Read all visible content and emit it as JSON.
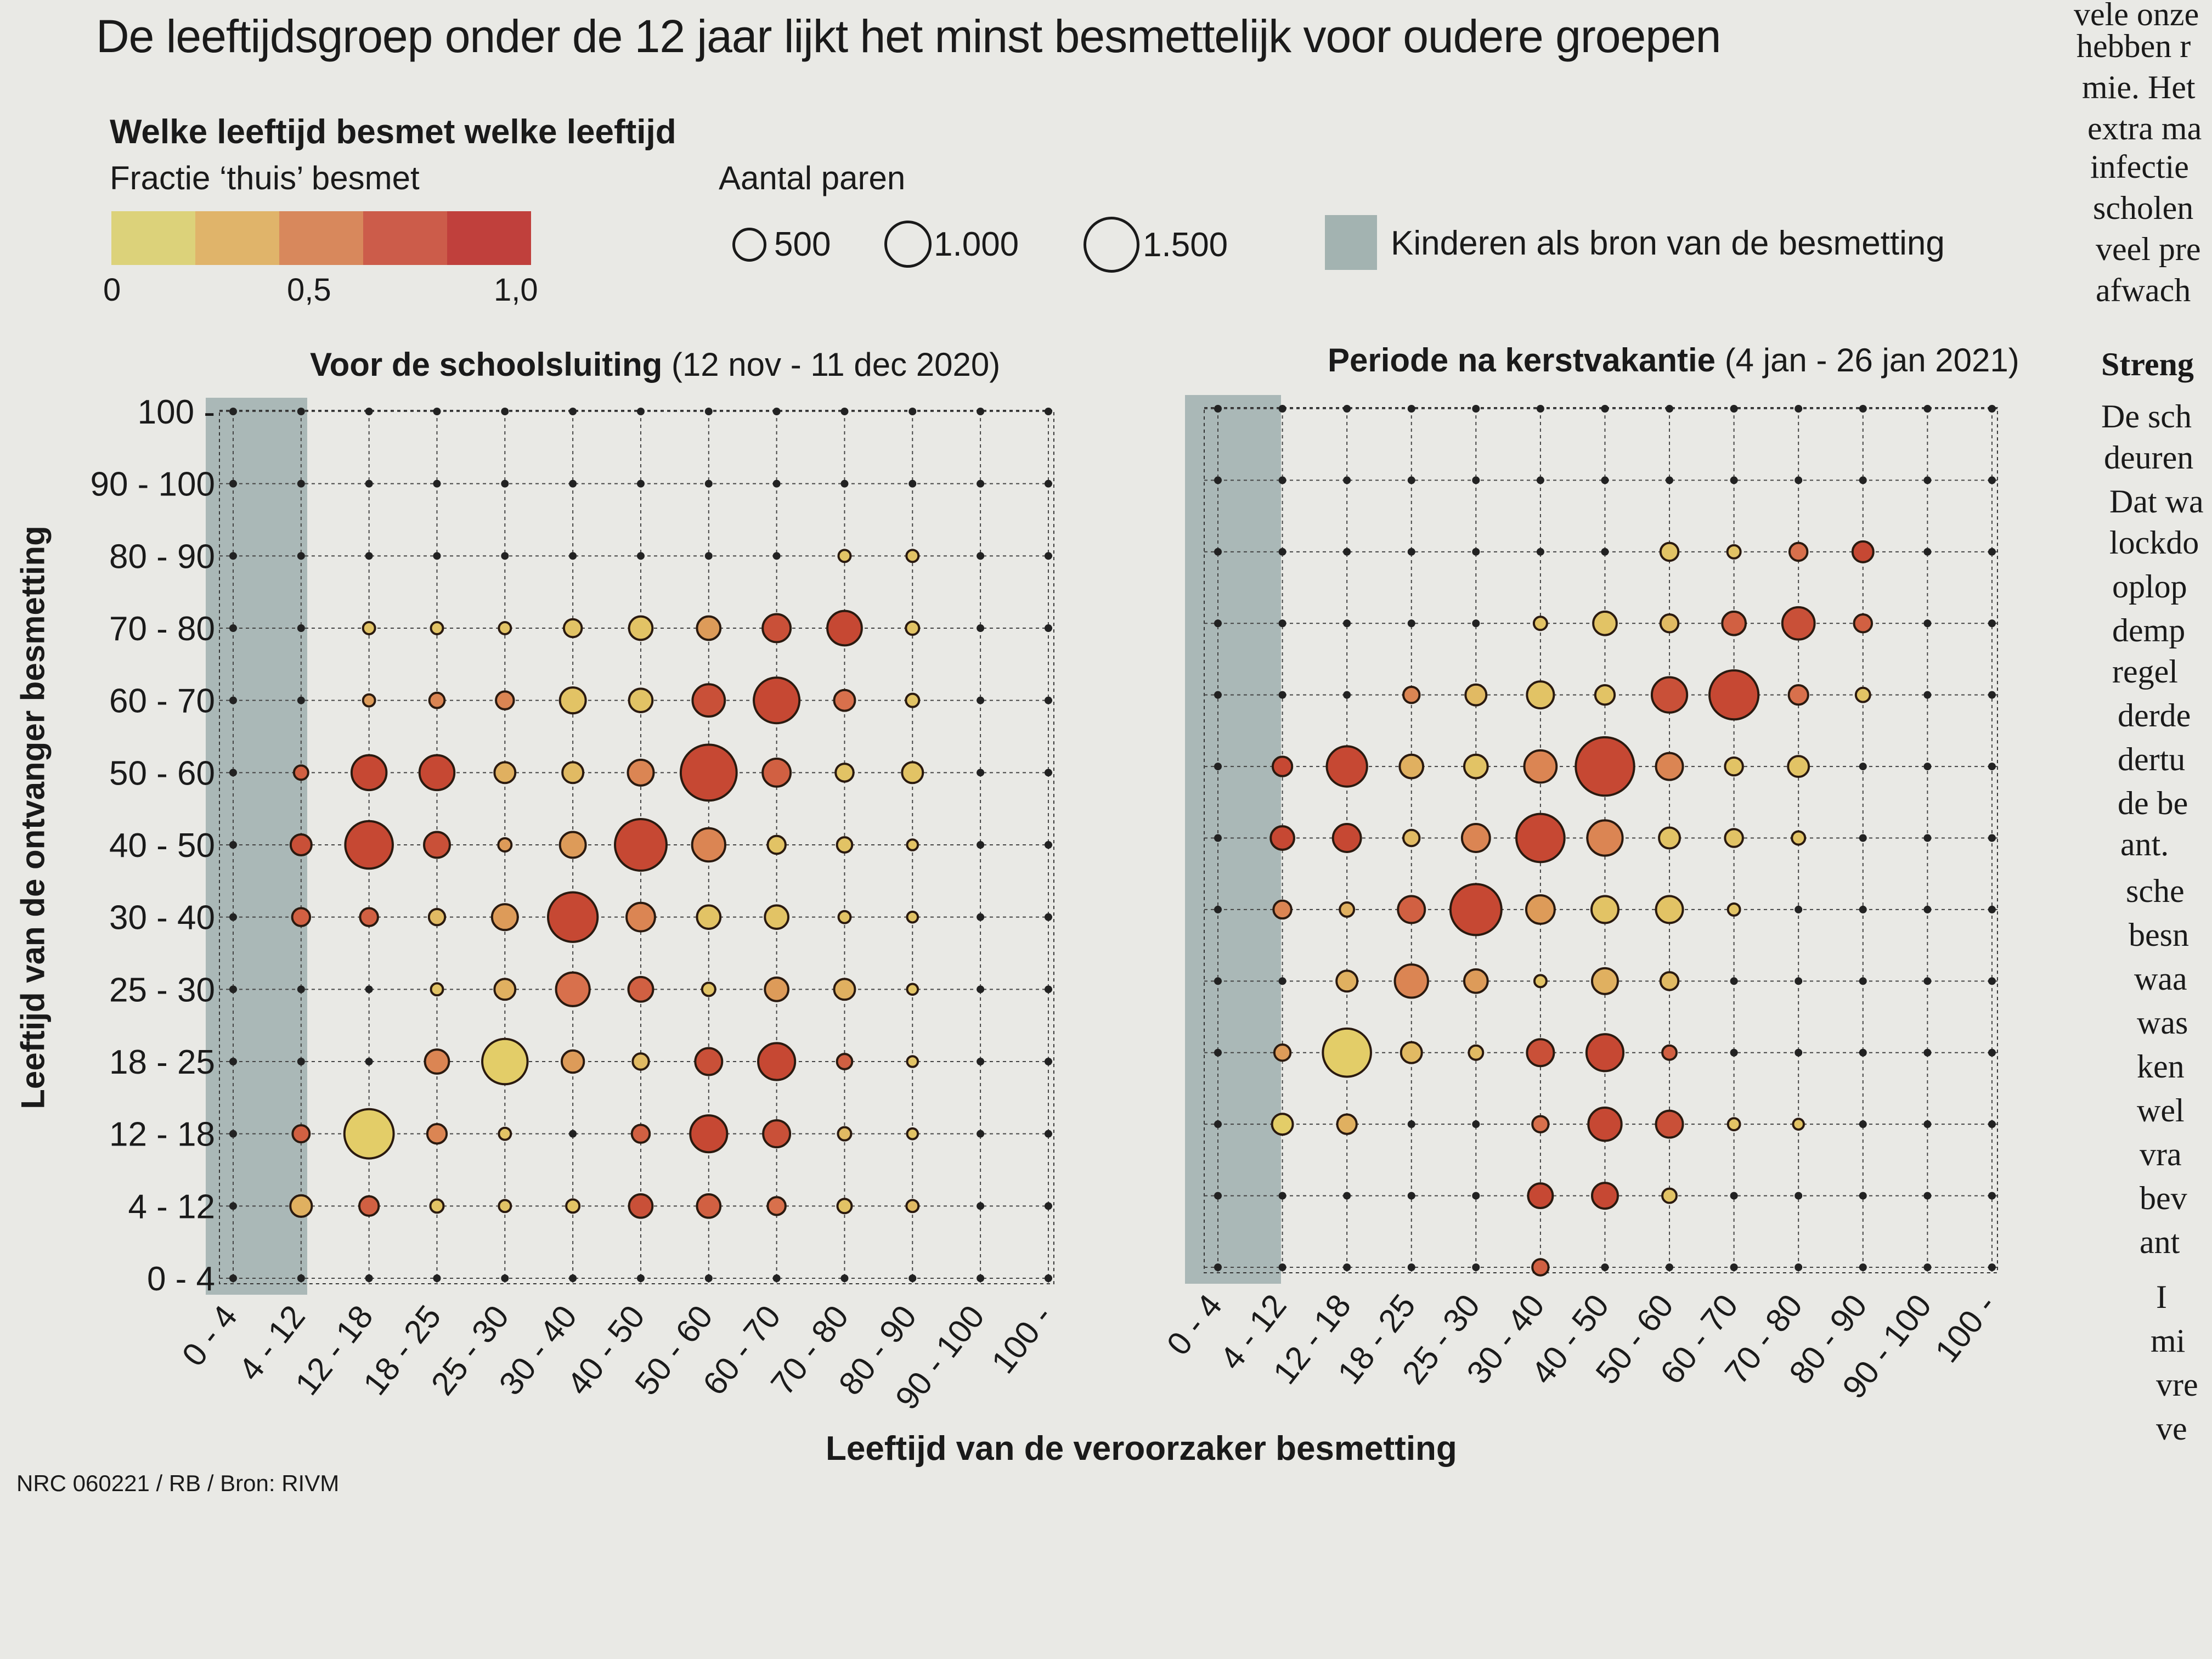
{
  "headline": "De leeftijdsgroep onder de 12 jaar lijkt het minst besmettelijk voor oudere groepen",
  "legend": {
    "title": "Welke leeftijd besmet welke leeftijd",
    "color_label": "Fractie ‘thuis’ besmet",
    "color_ticks": [
      "0",
      "0,5",
      "1,0"
    ],
    "color_scale": [
      "#dcd27a",
      "#e0b46a",
      "#d8885c",
      "#cc5c4a",
      "#c0403c"
    ],
    "size_label": "Aantal paren",
    "size_items": [
      {
        "label": "500",
        "value": 500
      },
      {
        "label": "1.000",
        "value": 1000
      },
      {
        "label": "1.500",
        "value": 1500
      }
    ],
    "children_label": "Kinderen als bron van de besmetting",
    "children_color": "#a3b3b1"
  },
  "axis": {
    "ylabel": "Leeftijd van de ontvanger besmetting",
    "xlabel": "Leeftijd van de veroorzaker besmetting",
    "categories": [
      "0 - 4",
      "4 - 12",
      "12 - 18",
      "18 - 25",
      "25 - 30",
      "30 - 40",
      "40 - 50",
      "50 - 60",
      "60 - 70",
      "70 - 80",
      "80 - 90",
      "90 - 100",
      "100 -"
    ],
    "x_tick_labels": [
      "0 - 4",
      "4 - 12",
      "12 - 18",
      "18 - 25",
      "25 - 30",
      "30 - 40",
      "40 - 50",
      "50 - 60",
      "60 - 70",
      "70 - 80",
      "80 - 90",
      "90 - 100",
      "100 -"
    ]
  },
  "source": "NRC 060221 / RB / Bron: RIVM",
  "chart_data": [
    {
      "type": "scatter",
      "title_bold": "Voor de schoolsluiting",
      "title_rest": " (12 nov - 11 dec 2020)",
      "note": "bubble matrix: x = index of source age group, y = index of recipient age group, size = number of pairs, frac = fraction infected at home",
      "points": [
        {
          "x": 1,
          "y": 1,
          "size": 160,
          "frac": 0.4
        },
        {
          "x": 2,
          "y": 1,
          "size": 130,
          "frac": 0.8
        },
        {
          "x": 3,
          "y": 1,
          "size": 60,
          "frac": 0.2
        },
        {
          "x": 4,
          "y": 1,
          "size": 50,
          "frac": 0.2
        },
        {
          "x": 5,
          "y": 1,
          "size": 60,
          "frac": 0.2
        },
        {
          "x": 6,
          "y": 1,
          "size": 190,
          "frac": 0.9
        },
        {
          "x": 7,
          "y": 1,
          "size": 190,
          "frac": 0.8
        },
        {
          "x": 8,
          "y": 1,
          "size": 110,
          "frac": 0.7
        },
        {
          "x": 9,
          "y": 1,
          "size": 70,
          "frac": 0.2
        },
        {
          "x": 10,
          "y": 1,
          "size": 50,
          "frac": 0.3
        },
        {
          "x": 1,
          "y": 2,
          "size": 100,
          "frac": 0.8
        },
        {
          "x": 2,
          "y": 2,
          "size": 840,
          "frac": 0.1
        },
        {
          "x": 3,
          "y": 2,
          "size": 130,
          "frac": 0.6
        },
        {
          "x": 4,
          "y": 2,
          "size": 50,
          "frac": 0.2
        },
        {
          "x": 6,
          "y": 2,
          "size": 110,
          "frac": 0.8
        },
        {
          "x": 7,
          "y": 2,
          "size": 470,
          "frac": 0.95
        },
        {
          "x": 8,
          "y": 2,
          "size": 250,
          "frac": 0.9
        },
        {
          "x": 9,
          "y": 2,
          "size": 60,
          "frac": 0.3
        },
        {
          "x": 10,
          "y": 2,
          "size": 40,
          "frac": 0.2
        },
        {
          "x": 3,
          "y": 3,
          "size": 200,
          "frac": 0.6
        },
        {
          "x": 4,
          "y": 3,
          "size": 710,
          "frac": 0.1
        },
        {
          "x": 5,
          "y": 3,
          "size": 170,
          "frac": 0.5
        },
        {
          "x": 6,
          "y": 3,
          "size": 90,
          "frac": 0.3
        },
        {
          "x": 7,
          "y": 3,
          "size": 250,
          "frac": 0.9
        },
        {
          "x": 8,
          "y": 3,
          "size": 470,
          "frac": 0.95
        },
        {
          "x": 9,
          "y": 3,
          "size": 80,
          "frac": 0.8
        },
        {
          "x": 10,
          "y": 3,
          "size": 40,
          "frac": 0.2
        },
        {
          "x": 3,
          "y": 4,
          "size": 50,
          "frac": 0.2
        },
        {
          "x": 4,
          "y": 4,
          "size": 150,
          "frac": 0.4
        },
        {
          "x": 5,
          "y": 4,
          "size": 390,
          "frac": 0.7
        },
        {
          "x": 6,
          "y": 4,
          "size": 210,
          "frac": 0.8
        },
        {
          "x": 7,
          "y": 4,
          "size": 60,
          "frac": 0.2
        },
        {
          "x": 8,
          "y": 4,
          "size": 190,
          "frac": 0.5
        },
        {
          "x": 9,
          "y": 4,
          "size": 150,
          "frac": 0.4
        },
        {
          "x": 10,
          "y": 4,
          "size": 40,
          "frac": 0.2
        },
        {
          "x": 1,
          "y": 5,
          "size": 110,
          "frac": 0.8
        },
        {
          "x": 2,
          "y": 5,
          "size": 110,
          "frac": 0.8
        },
        {
          "x": 3,
          "y": 5,
          "size": 90,
          "frac": 0.3
        },
        {
          "x": 4,
          "y": 5,
          "size": 230,
          "frac": 0.5
        },
        {
          "x": 5,
          "y": 5,
          "size": 850,
          "frac": 0.95
        },
        {
          "x": 6,
          "y": 5,
          "size": 280,
          "frac": 0.6
        },
        {
          "x": 7,
          "y": 5,
          "size": 190,
          "frac": 0.2
        },
        {
          "x": 8,
          "y": 5,
          "size": 190,
          "frac": 0.2
        },
        {
          "x": 9,
          "y": 5,
          "size": 50,
          "frac": 0.2
        },
        {
          "x": 10,
          "y": 5,
          "size": 40,
          "frac": 0.2
        },
        {
          "x": 1,
          "y": 6,
          "size": 150,
          "frac": 0.9
        },
        {
          "x": 2,
          "y": 6,
          "size": 780,
          "frac": 0.95
        },
        {
          "x": 3,
          "y": 6,
          "size": 230,
          "frac": 0.9
        },
        {
          "x": 4,
          "y": 6,
          "size": 60,
          "frac": 0.5
        },
        {
          "x": 5,
          "y": 6,
          "size": 230,
          "frac": 0.5
        },
        {
          "x": 6,
          "y": 6,
          "size": 920,
          "frac": 0.95
        },
        {
          "x": 7,
          "y": 6,
          "size": 380,
          "frac": 0.6
        },
        {
          "x": 8,
          "y": 6,
          "size": 110,
          "frac": 0.2
        },
        {
          "x": 9,
          "y": 6,
          "size": 80,
          "frac": 0.2
        },
        {
          "x": 10,
          "y": 6,
          "size": 40,
          "frac": 0.2
        },
        {
          "x": 1,
          "y": 7,
          "size": 70,
          "frac": 0.8
        },
        {
          "x": 2,
          "y": 7,
          "size": 420,
          "frac": 0.95
        },
        {
          "x": 3,
          "y": 7,
          "size": 420,
          "frac": 0.95
        },
        {
          "x": 4,
          "y": 7,
          "size": 150,
          "frac": 0.4
        },
        {
          "x": 5,
          "y": 7,
          "size": 150,
          "frac": 0.3
        },
        {
          "x": 6,
          "y": 7,
          "size": 230,
          "frac": 0.6
        },
        {
          "x": 7,
          "y": 7,
          "size": 1080,
          "frac": 0.95
        },
        {
          "x": 8,
          "y": 7,
          "size": 270,
          "frac": 0.8
        },
        {
          "x": 9,
          "y": 7,
          "size": 110,
          "frac": 0.2
        },
        {
          "x": 10,
          "y": 7,
          "size": 150,
          "frac": 0.2
        },
        {
          "x": 2,
          "y": 8,
          "size": 50,
          "frac": 0.5
        },
        {
          "x": 3,
          "y": 8,
          "size": 80,
          "frac": 0.6
        },
        {
          "x": 4,
          "y": 8,
          "size": 110,
          "frac": 0.6
        },
        {
          "x": 5,
          "y": 8,
          "size": 230,
          "frac": 0.2
        },
        {
          "x": 6,
          "y": 8,
          "size": 190,
          "frac": 0.2
        },
        {
          "x": 7,
          "y": 8,
          "size": 360,
          "frac": 0.9
        },
        {
          "x": 8,
          "y": 8,
          "size": 720,
          "frac": 0.95
        },
        {
          "x": 9,
          "y": 8,
          "size": 150,
          "frac": 0.7
        },
        {
          "x": 10,
          "y": 8,
          "size": 60,
          "frac": 0.2
        },
        {
          "x": 2,
          "y": 9,
          "size": 50,
          "frac": 0.2
        },
        {
          "x": 3,
          "y": 9,
          "size": 50,
          "frac": 0.2
        },
        {
          "x": 4,
          "y": 9,
          "size": 50,
          "frac": 0.2
        },
        {
          "x": 5,
          "y": 9,
          "size": 110,
          "frac": 0.2
        },
        {
          "x": 6,
          "y": 9,
          "size": 190,
          "frac": 0.2
        },
        {
          "x": 7,
          "y": 9,
          "size": 190,
          "frac": 0.5
        },
        {
          "x": 8,
          "y": 9,
          "size": 270,
          "frac": 0.9
        },
        {
          "x": 9,
          "y": 9,
          "size": 410,
          "frac": 0.95
        },
        {
          "x": 10,
          "y": 9,
          "size": 60,
          "frac": 0.2
        },
        {
          "x": 9,
          "y": 10,
          "size": 50,
          "frac": 0.2
        },
        {
          "x": 10,
          "y": 10,
          "size": 50,
          "frac": 0.2
        }
      ]
    },
    {
      "type": "scatter",
      "title_bold": "Periode na kerstvakantie",
      "title_rest": " (4 jan - 26 jan 2021)",
      "note": "bubble matrix: x = index of source age group, y = index of recipient age group, size = number of pairs, frac = fraction infected at home",
      "points": [
        {
          "x": 5,
          "y": 0,
          "size": 90,
          "frac": 0.8
        },
        {
          "x": 5,
          "y": 1,
          "size": 210,
          "frac": 0.95
        },
        {
          "x": 6,
          "y": 1,
          "size": 230,
          "frac": 0.95
        },
        {
          "x": 7,
          "y": 1,
          "size": 70,
          "frac": 0.2
        },
        {
          "x": 1,
          "y": 2,
          "size": 150,
          "frac": 0.1
        },
        {
          "x": 2,
          "y": 2,
          "size": 130,
          "frac": 0.4
        },
        {
          "x": 5,
          "y": 2,
          "size": 90,
          "frac": 0.7
        },
        {
          "x": 6,
          "y": 2,
          "size": 380,
          "frac": 0.95
        },
        {
          "x": 7,
          "y": 2,
          "size": 250,
          "frac": 0.9
        },
        {
          "x": 8,
          "y": 2,
          "size": 50,
          "frac": 0.2
        },
        {
          "x": 9,
          "y": 2,
          "size": 40,
          "frac": 0.2
        },
        {
          "x": 1,
          "y": 3,
          "size": 90,
          "frac": 0.5
        },
        {
          "x": 2,
          "y": 3,
          "size": 800,
          "frac": 0.1
        },
        {
          "x": 3,
          "y": 3,
          "size": 150,
          "frac": 0.3
        },
        {
          "x": 4,
          "y": 3,
          "size": 70,
          "frac": 0.3
        },
        {
          "x": 5,
          "y": 3,
          "size": 250,
          "frac": 0.9
        },
        {
          "x": 6,
          "y": 3,
          "size": 470,
          "frac": 0.95
        },
        {
          "x": 7,
          "y": 3,
          "size": 70,
          "frac": 0.8
        },
        {
          "x": 2,
          "y": 4,
          "size": 150,
          "frac": 0.4
        },
        {
          "x": 3,
          "y": 4,
          "size": 380,
          "frac": 0.6
        },
        {
          "x": 4,
          "y": 4,
          "size": 190,
          "frac": 0.5
        },
        {
          "x": 5,
          "y": 4,
          "size": 50,
          "frac": 0.2
        },
        {
          "x": 6,
          "y": 4,
          "size": 230,
          "frac": 0.4
        },
        {
          "x": 7,
          "y": 4,
          "size": 110,
          "frac": 0.3
        },
        {
          "x": 1,
          "y": 5,
          "size": 110,
          "frac": 0.6
        },
        {
          "x": 2,
          "y": 5,
          "size": 70,
          "frac": 0.4
        },
        {
          "x": 3,
          "y": 5,
          "size": 250,
          "frac": 0.8
        },
        {
          "x": 4,
          "y": 5,
          "size": 900,
          "frac": 0.95
        },
        {
          "x": 5,
          "y": 5,
          "size": 280,
          "frac": 0.5
        },
        {
          "x": 6,
          "y": 5,
          "size": 250,
          "frac": 0.2
        },
        {
          "x": 7,
          "y": 5,
          "size": 250,
          "frac": 0.2
        },
        {
          "x": 8,
          "y": 5,
          "size": 50,
          "frac": 0.2
        },
        {
          "x": 1,
          "y": 6,
          "size": 190,
          "frac": 0.95
        },
        {
          "x": 2,
          "y": 6,
          "size": 270,
          "frac": 0.95
        },
        {
          "x": 3,
          "y": 6,
          "size": 90,
          "frac": 0.3
        },
        {
          "x": 4,
          "y": 6,
          "size": 270,
          "frac": 0.6
        },
        {
          "x": 5,
          "y": 6,
          "size": 800,
          "frac": 0.95
        },
        {
          "x": 6,
          "y": 6,
          "size": 430,
          "frac": 0.6
        },
        {
          "x": 7,
          "y": 6,
          "size": 150,
          "frac": 0.2
        },
        {
          "x": 8,
          "y": 6,
          "size": 110,
          "frac": 0.2
        },
        {
          "x": 9,
          "y": 6,
          "size": 60,
          "frac": 0.2
        },
        {
          "x": 1,
          "y": 7,
          "size": 130,
          "frac": 0.95
        },
        {
          "x": 2,
          "y": 7,
          "size": 560,
          "frac": 0.95
        },
        {
          "x": 3,
          "y": 7,
          "size": 190,
          "frac": 0.4
        },
        {
          "x": 4,
          "y": 7,
          "size": 190,
          "frac": 0.2
        },
        {
          "x": 5,
          "y": 7,
          "size": 360,
          "frac": 0.6
        },
        {
          "x": 6,
          "y": 7,
          "size": 1180,
          "frac": 0.95
        },
        {
          "x": 7,
          "y": 7,
          "size": 250,
          "frac": 0.6
        },
        {
          "x": 8,
          "y": 7,
          "size": 110,
          "frac": 0.2
        },
        {
          "x": 9,
          "y": 7,
          "size": 150,
          "frac": 0.2
        },
        {
          "x": 3,
          "y": 8,
          "size": 90,
          "frac": 0.6
        },
        {
          "x": 4,
          "y": 8,
          "size": 150,
          "frac": 0.3
        },
        {
          "x": 5,
          "y": 8,
          "size": 250,
          "frac": 0.2
        },
        {
          "x": 6,
          "y": 8,
          "size": 130,
          "frac": 0.2
        },
        {
          "x": 7,
          "y": 8,
          "size": 430,
          "frac": 0.9
        },
        {
          "x": 8,
          "y": 8,
          "size": 830,
          "frac": 0.95
        },
        {
          "x": 9,
          "y": 8,
          "size": 130,
          "frac": 0.7
        },
        {
          "x": 10,
          "y": 8,
          "size": 70,
          "frac": 0.2
        },
        {
          "x": 5,
          "y": 9,
          "size": 60,
          "frac": 0.2
        },
        {
          "x": 6,
          "y": 9,
          "size": 190,
          "frac": 0.2
        },
        {
          "x": 7,
          "y": 9,
          "size": 110,
          "frac": 0.3
        },
        {
          "x": 8,
          "y": 9,
          "size": 190,
          "frac": 0.8
        },
        {
          "x": 9,
          "y": 9,
          "size": 360,
          "frac": 0.9
        },
        {
          "x": 10,
          "y": 9,
          "size": 110,
          "frac": 0.8
        },
        {
          "x": 7,
          "y": 10,
          "size": 110,
          "frac": 0.2
        },
        {
          "x": 8,
          "y": 10,
          "size": 60,
          "frac": 0.2
        },
        {
          "x": 9,
          "y": 10,
          "size": 110,
          "frac": 0.7
        },
        {
          "x": 10,
          "y": 10,
          "size": 150,
          "frac": 0.95
        }
      ]
    }
  ],
  "article_fragments": [
    "vele onze",
    "hebben r",
    "mie. Het",
    "extra ma",
    "infectie",
    "scholen",
    "veel pre",
    "afwach",
    "Streng",
    "De sch",
    "deuren",
    "Dat wa",
    "lockdo",
    "oplop",
    "demp",
    "regel",
    "derde",
    "dertu",
    "de be",
    "ant.",
    "sche",
    "besn",
    "waa",
    "was",
    "ken",
    "wel",
    "vra",
    "bev",
    "ant",
    "I",
    "mi",
    "vre",
    "ve"
  ]
}
